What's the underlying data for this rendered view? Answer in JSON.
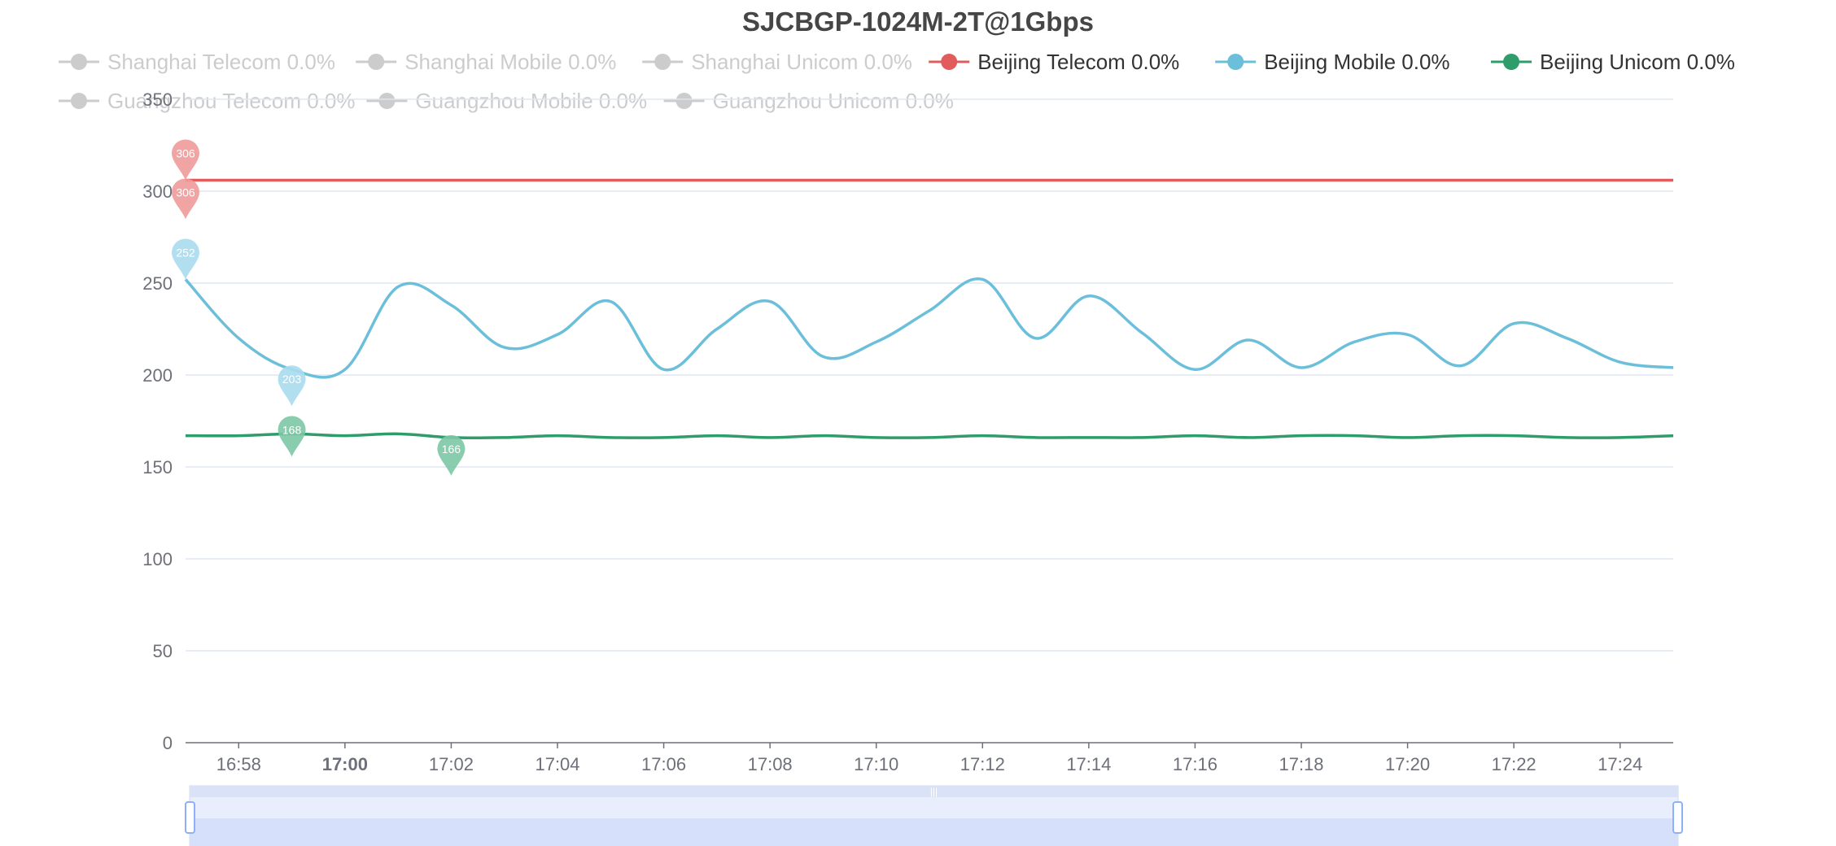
{
  "chart_data": {
    "type": "line",
    "title": "SJCBGP-1024M-2T@1Gbps",
    "x": [
      "16:57",
      "16:58",
      "16:59",
      "17:00",
      "17:01",
      "17:02",
      "17:03",
      "17:04",
      "17:05",
      "17:06",
      "17:07",
      "17:08",
      "17:09",
      "17:10",
      "17:11",
      "17:12",
      "17:13",
      "17:14",
      "17:15",
      "17:16",
      "17:17",
      "17:18",
      "17:19",
      "17:20",
      "17:21",
      "17:22",
      "17:23",
      "17:24",
      "17:25"
    ],
    "x_tick_labels": [
      "16:58",
      "17:00",
      "17:02",
      "17:04",
      "17:06",
      "17:08",
      "17:10",
      "17:12",
      "17:14",
      "17:16",
      "17:18",
      "17:20",
      "17:22",
      "17:24"
    ],
    "x_tick_bold": "17:00",
    "ylim": [
      0,
      350
    ],
    "y_ticks": [
      0,
      50,
      100,
      150,
      200,
      250,
      300,
      350
    ],
    "grid": true,
    "legend_position": "top",
    "legend": [
      {
        "name": "Shanghai Telecom 0.0%",
        "color": "#cccccc",
        "active": false
      },
      {
        "name": "Shanghai Mobile 0.0%",
        "color": "#cccccc",
        "active": false
      },
      {
        "name": "Shanghai Unicom 0.0%",
        "color": "#cccccc",
        "active": false
      },
      {
        "name": "Beijing Telecom 0.0%",
        "color": "#e25c5c",
        "active": true
      },
      {
        "name": "Beijing Mobile 0.0%",
        "color": "#6cbfda",
        "active": true
      },
      {
        "name": "Beijing Unicom 0.0%",
        "color": "#2f9d6b",
        "active": true
      },
      {
        "name": "Guangzhou Telecom 0.0%",
        "color": "#cccccc",
        "active": false
      },
      {
        "name": "Guangzhou Mobile 0.0%",
        "color": "#cccccc",
        "active": false
      },
      {
        "name": "Guangzhou Unicom 0.0%",
        "color": "#cccccc",
        "active": false
      }
    ],
    "series": [
      {
        "name": "Beijing Telecom 0.0%",
        "color": "#e25c5c",
        "values": [
          306,
          306,
          306,
          306,
          306,
          306,
          306,
          306,
          306,
          306,
          306,
          306,
          306,
          306,
          306,
          306,
          306,
          306,
          306,
          306,
          306,
          306,
          306,
          306,
          306,
          306,
          306,
          306,
          306
        ],
        "markers": [
          {
            "label": "306",
            "x": "16:57",
            "y": 306
          },
          {
            "label": "306",
            "x": "16:57",
            "y": 306
          }
        ],
        "marker_colors": [
          "#ef9a9a",
          "#ef9a9a"
        ]
      },
      {
        "name": "Beijing Mobile 0.0%",
        "color": "#6cbfda",
        "values": [
          252,
          220,
          203,
          203,
          248,
          238,
          215,
          222,
          240,
          203,
          225,
          240,
          210,
          218,
          235,
          252,
          220,
          243,
          223,
          203,
          219,
          204,
          218,
          222,
          205,
          228,
          220,
          207,
          204
        ],
        "markers": [
          {
            "label": "252",
            "x": "16:57",
            "y": 252
          },
          {
            "label": "203",
            "x": "16:59",
            "y": 203
          }
        ],
        "marker_colors": [
          "#a9dcee",
          "#a9dcee"
        ]
      },
      {
        "name": "Beijing Unicom 0.0%",
        "color": "#2f9d6b",
        "values": [
          167,
          167,
          168,
          167,
          168,
          166,
          166,
          167,
          166,
          166,
          167,
          166,
          167,
          166,
          166,
          167,
          166,
          166,
          166,
          167,
          166,
          167,
          167,
          166,
          167,
          167,
          166,
          166,
          167
        ],
        "markers": [
          {
            "label": "168",
            "x": "16:59",
            "y": 168
          },
          {
            "label": "166",
            "x": "17:02",
            "y": 166
          }
        ],
        "marker_colors": [
          "#7cc7a5",
          "#7cc7a5"
        ]
      }
    ]
  },
  "datazoom": {
    "start_percent": 0,
    "end_percent": 100,
    "handle_label": "|||"
  }
}
